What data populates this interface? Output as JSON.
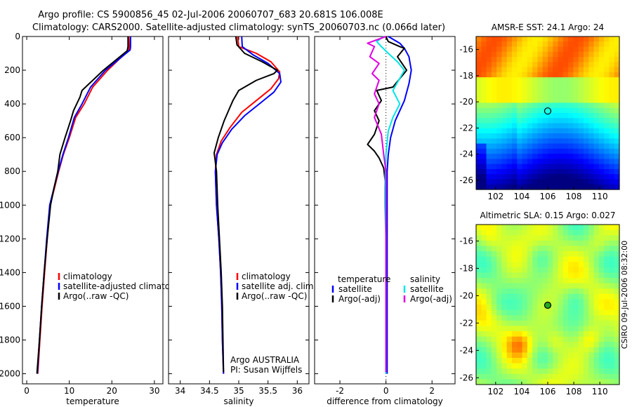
{
  "title_line1": "Argo profile: CS 5900856_45 02-Jul-2006 20060707_683 20.681S 106.008E",
  "title_line2": "Climatology: CARS2000. Satellite-adjusted climatology: synTS_20060703.nc (0.066d later)",
  "side_label": "CSIRO 09-Jul-2006 08:32:00",
  "colors": {
    "red": "#ff0000",
    "blue": "#0000ff",
    "black": "#000000",
    "cyan": "#00e5e5",
    "magenta": "#e000e0"
  },
  "chart_data": [
    {
      "type": "line",
      "id": "temperature",
      "xlabel": "temperature",
      "xlim": [
        -1,
        32
      ],
      "ylim": [
        0,
        2060
      ],
      "y_reversed": true,
      "xticks": [
        0,
        10,
        20,
        30
      ],
      "yticks": [
        0,
        200,
        400,
        600,
        800,
        1000,
        1200,
        1400,
        1600,
        1800,
        2000
      ],
      "legend": [
        "climatology",
        "satellite-adjusted climatology",
        "Argo(..raw -QC)"
      ],
      "series": [
        {
          "name": "climatology",
          "color": "red",
          "points": [
            [
              24.0,
              0
            ],
            [
              24.1,
              60
            ],
            [
              24.0,
              80
            ],
            [
              19.0,
              200
            ],
            [
              15.5,
              300
            ],
            [
              13.5,
              400
            ],
            [
              11.5,
              480
            ],
            [
              10.0,
              600
            ],
            [
              8.6,
              700
            ],
            [
              7.5,
              800
            ],
            [
              6.5,
              900
            ],
            [
              5.5,
              1000
            ],
            [
              4.8,
              1200
            ],
            [
              4.2,
              1400
            ],
            [
              3.6,
              1600
            ],
            [
              3.1,
              1800
            ],
            [
              2.6,
              2000
            ]
          ]
        },
        {
          "name": "satellite-adjusted climatology",
          "color": "blue",
          "points": [
            [
              24.4,
              0
            ],
            [
              24.4,
              60
            ],
            [
              24.3,
              80
            ],
            [
              18.5,
              200
            ],
            [
              15.0,
              300
            ],
            [
              13.0,
              400
            ],
            [
              11.2,
              480
            ],
            [
              9.8,
              600
            ],
            [
              8.5,
              700
            ],
            [
              7.4,
              800
            ],
            [
              6.4,
              900
            ],
            [
              5.4,
              1000
            ],
            [
              4.7,
              1200
            ],
            [
              4.1,
              1400
            ],
            [
              3.5,
              1600
            ],
            [
              3.0,
              1800
            ],
            [
              2.5,
              2000
            ]
          ]
        },
        {
          "name": "Argo(..raw -QC)",
          "color": "black",
          "points": [
            [
              23.8,
              0
            ],
            [
              23.8,
              60
            ],
            [
              23.6,
              85
            ],
            [
              18.0,
              200
            ],
            [
              13.0,
              320
            ],
            [
              12.5,
              360
            ],
            [
              11.0,
              440
            ],
            [
              10.3,
              500
            ],
            [
              9.0,
              600
            ],
            [
              7.8,
              700
            ],
            [
              7.3,
              800
            ],
            [
              6.4,
              900
            ],
            [
              5.6,
              1000
            ],
            [
              4.8,
              1200
            ],
            [
              4.1,
              1400
            ],
            [
              3.5,
              1600
            ],
            [
              3.0,
              1800
            ],
            [
              2.4,
              2000
            ]
          ]
        }
      ]
    },
    {
      "type": "line",
      "id": "salinity",
      "xlabel": "salinity",
      "xlim": [
        33.8,
        36.2
      ],
      "ylim": [
        0,
        2060
      ],
      "y_reversed": true,
      "xticks": [
        34,
        34.5,
        35,
        35.5,
        36
      ],
      "xticklabels": [
        "34",
        "34.5",
        "35",
        "35.5",
        "36"
      ],
      "legend": [
        "climatology",
        "satellite adj. clim.",
        "Argo(..raw -QC)"
      ],
      "annotation": [
        "Argo AUSTRALIA",
        "PI: Susan Wijffels"
      ],
      "series": [
        {
          "name": "climatology",
          "color": "red",
          "points": [
            [
              34.98,
              0
            ],
            [
              35.0,
              60
            ],
            [
              35.3,
              100
            ],
            [
              35.55,
              150
            ],
            [
              35.7,
              210
            ],
            [
              35.68,
              250
            ],
            [
              35.55,
              310
            ],
            [
              35.3,
              380
            ],
            [
              35.05,
              450
            ],
            [
              34.85,
              540
            ],
            [
              34.7,
              620
            ],
            [
              34.62,
              700
            ],
            [
              34.6,
              800
            ],
            [
              34.62,
              1000
            ],
            [
              34.66,
              1200
            ],
            [
              34.69,
              1400
            ],
            [
              34.71,
              1600
            ],
            [
              34.72,
              1800
            ],
            [
              34.74,
              2000
            ]
          ]
        },
        {
          "name": "satellite adj. clim.",
          "color": "blue",
          "points": [
            [
              35.05,
              0
            ],
            [
              35.06,
              60
            ],
            [
              35.25,
              110
            ],
            [
              35.5,
              160
            ],
            [
              35.7,
              220
            ],
            [
              35.72,
              270
            ],
            [
              35.6,
              330
            ],
            [
              35.35,
              400
            ],
            [
              35.1,
              470
            ],
            [
              34.88,
              550
            ],
            [
              34.72,
              630
            ],
            [
              34.63,
              700
            ],
            [
              34.6,
              800
            ],
            [
              34.62,
              1000
            ],
            [
              34.66,
              1200
            ],
            [
              34.69,
              1400
            ],
            [
              34.71,
              1600
            ],
            [
              34.72,
              1800
            ],
            [
              34.74,
              2000
            ]
          ]
        },
        {
          "name": "Argo(..raw -QC)",
          "color": "black",
          "points": [
            [
              34.95,
              0
            ],
            [
              34.97,
              50
            ],
            [
              35.1,
              100
            ],
            [
              35.4,
              150
            ],
            [
              35.66,
              200
            ],
            [
              35.6,
              220
            ],
            [
              35.3,
              260
            ],
            [
              35.0,
              320
            ],
            [
              34.9,
              380
            ],
            [
              34.85,
              420
            ],
            [
              34.75,
              500
            ],
            [
              34.65,
              600
            ],
            [
              34.58,
              690
            ],
            [
              34.62,
              800
            ],
            [
              34.64,
              1000
            ],
            [
              34.67,
              1200
            ],
            [
              34.7,
              1400
            ],
            [
              34.72,
              1600
            ],
            [
              34.73,
              1800
            ],
            [
              34.74,
              1990
            ]
          ]
        }
      ]
    },
    {
      "type": "line",
      "id": "difference",
      "xlabel": "difference from climatology",
      "xlim": [
        -3.1,
        3.0
      ],
      "ylim": [
        0,
        2060
      ],
      "y_reversed": true,
      "xticks": [
        -2,
        0,
        2
      ],
      "legend_titles": [
        "temperature",
        "salinity"
      ],
      "legend": [
        "satellite",
        "Argo(-adj)",
        "satellite",
        "Argo(-adj)"
      ],
      "series": [
        {
          "name": "temperature satellite",
          "color": "blue",
          "points": [
            [
              0.1,
              0
            ],
            [
              0.6,
              40
            ],
            [
              0.8,
              70
            ],
            [
              1.0,
              120
            ],
            [
              1.1,
              200
            ],
            [
              1.0,
              280
            ],
            [
              0.8,
              380
            ],
            [
              0.4,
              500
            ],
            [
              0.2,
              600
            ],
            [
              0.1,
              700
            ],
            [
              0.05,
              800
            ],
            [
              0.05,
              1000
            ],
            [
              0.05,
              1200
            ],
            [
              0.05,
              1500
            ],
            [
              0.05,
              1800
            ],
            [
              0.05,
              2000
            ]
          ]
        },
        {
          "name": "temperature Argo(-adj)",
          "color": "black",
          "points": [
            [
              0,
              0
            ],
            [
              0.1,
              30
            ],
            [
              0.6,
              60
            ],
            [
              0.8,
              70
            ],
            [
              0.5,
              120
            ],
            [
              0.9,
              200
            ],
            [
              0.6,
              250
            ],
            [
              0.3,
              300
            ],
            [
              -0.4,
              320
            ],
            [
              -0.2,
              380
            ],
            [
              -0.5,
              440
            ],
            [
              -0.3,
              500
            ],
            [
              -0.5,
              580
            ],
            [
              -0.8,
              640
            ],
            [
              -0.5,
              680
            ],
            [
              -0.3,
              720
            ],
            [
              -0.1,
              780
            ],
            [
              0,
              900
            ],
            [
              0,
              1100
            ],
            [
              0,
              1400
            ],
            [
              0,
              1700
            ],
            [
              0,
              1990
            ]
          ]
        },
        {
          "name": "salinity satellite",
          "color": "cyan",
          "points": [
            [
              -0.1,
              0
            ],
            [
              -0.4,
              30
            ],
            [
              -0.2,
              60
            ],
            [
              0.1,
              100
            ],
            [
              0.5,
              150
            ],
            [
              0.8,
              200
            ],
            [
              0.3,
              320
            ],
            [
              0.6,
              400
            ],
            [
              0.3,
              480
            ],
            [
              0.1,
              560
            ],
            [
              0.0,
              700
            ],
            [
              -0.05,
              900
            ],
            [
              -0.05,
              1000
            ],
            [
              0.0,
              1200
            ],
            [
              0.0,
              1500
            ],
            [
              0.0,
              1800
            ],
            [
              0.0,
              2000
            ]
          ]
        },
        {
          "name": "salinity Argo(-adj)",
          "color": "magenta",
          "points": [
            [
              0,
              0
            ],
            [
              -0.8,
              40
            ],
            [
              -0.5,
              60
            ],
            [
              -0.7,
              120
            ],
            [
              -0.3,
              160
            ],
            [
              -0.6,
              220
            ],
            [
              -0.3,
              260
            ],
            [
              -0.5,
              340
            ],
            [
              -0.3,
              400
            ],
            [
              -0.5,
              480
            ],
            [
              -0.2,
              580
            ],
            [
              -0.1,
              700
            ],
            [
              0,
              800
            ],
            [
              0,
              1000
            ],
            [
              0,
              1400
            ],
            [
              0,
              1990
            ]
          ]
        }
      ]
    },
    {
      "type": "heatmap",
      "id": "sst_map",
      "title": "AMSR-E SST: 24.1 Argo: 24",
      "xlim": [
        100.5,
        111.5
      ],
      "ylim": [
        -26.7,
        -15
      ],
      "xticks": [
        102,
        104,
        106,
        108,
        110
      ],
      "yticks": [
        -16,
        -18,
        -20,
        -22,
        -24,
        -26
      ],
      "marker": {
        "lon": 106.0,
        "lat": -20.7,
        "filled": false
      }
    },
    {
      "type": "heatmap",
      "id": "sla_map",
      "title": "Altimetric SLA: 0.15 Argo: 0.027",
      "xlim": [
        100.5,
        111.5
      ],
      "ylim": [
        -26.5,
        -14.8
      ],
      "xticks": [
        102,
        104,
        106,
        108,
        110
      ],
      "yticks": [
        -16,
        -18,
        -20,
        -22,
        -24,
        -26
      ],
      "marker": {
        "lon": 106.0,
        "lat": -20.7,
        "filled": true
      }
    }
  ]
}
